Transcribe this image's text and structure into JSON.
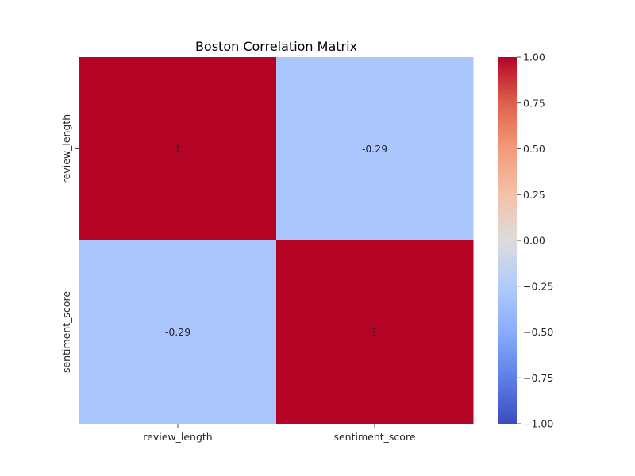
{
  "chart_data": {
    "type": "heatmap",
    "title": "Boston Correlation Matrix",
    "xlabel": "",
    "ylabel": "",
    "x_categories": [
      "review_length",
      "sentiment_score"
    ],
    "y_categories": [
      "review_length",
      "sentiment_score"
    ],
    "values": [
      [
        1,
        -0.29
      ],
      [
        -0.29,
        1
      ]
    ],
    "annotations": [
      [
        "1",
        "-0.29"
      ],
      [
        "-0.29",
        "1"
      ]
    ],
    "colormap": "coolwarm",
    "vmin": -1.0,
    "vmax": 1.0,
    "colorbar_ticks": [
      "1.00",
      "0.75",
      "0.50",
      "0.25",
      "0.00",
      "−0.25",
      "−0.50",
      "−0.75",
      "−1.00"
    ],
    "colorbar_tick_values": [
      1.0,
      0.75,
      0.5,
      0.25,
      0.0,
      -0.25,
      -0.5,
      -0.75,
      -1.0
    ],
    "colors": {
      "low": "#3b4cc0",
      "mid": "#dddddd",
      "high": "#b40426"
    },
    "grid": false,
    "legend": "colorbar-right"
  }
}
